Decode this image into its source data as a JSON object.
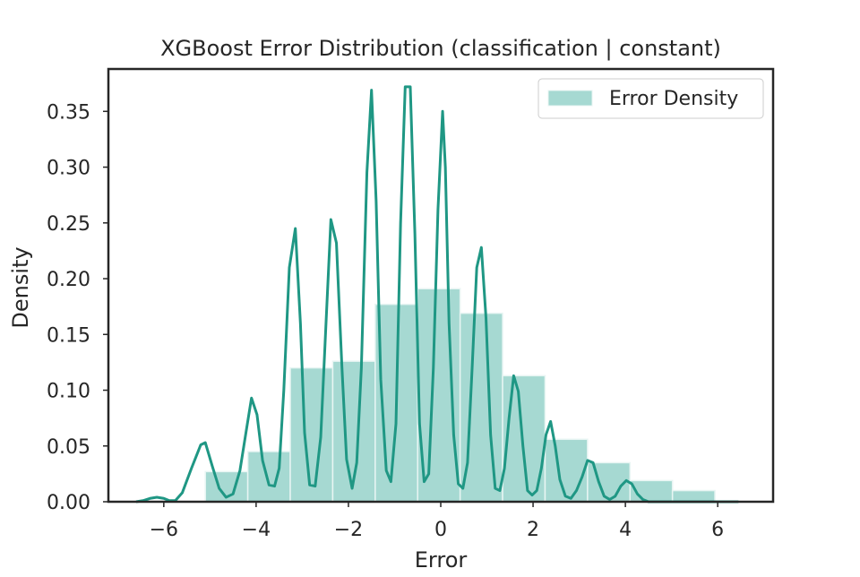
{
  "chart_data": {
    "type": "bar",
    "title": "XGBoost Error Distribution (classification | constant)",
    "xlabel": "Error",
    "ylabel": "Density",
    "xlim": [
      -7.2,
      7.2
    ],
    "ylim": [
      0,
      0.388
    ],
    "x_ticks": [
      -6,
      -4,
      -2,
      0,
      2,
      4,
      6
    ],
    "x_tick_labels": [
      "−6",
      "−4",
      "−2",
      "0",
      "2",
      "4",
      "6"
    ],
    "y_ticks": [
      0,
      0.05,
      0.1,
      0.15,
      0.2,
      0.25,
      0.3,
      0.35
    ],
    "y_tick_labels": [
      "0.00",
      "0.05",
      "0.10",
      "0.15",
      "0.20",
      "0.25",
      "0.30",
      "0.35"
    ],
    "grid": false,
    "legend": {
      "position": "top-right",
      "entries": [
        "Error Density"
      ]
    },
    "colors": {
      "bar_fill": "#a6d9d2",
      "bar_edge": "#e8f5f3",
      "line": "#1f9784",
      "axis": "#262626"
    },
    "histogram": {
      "name": "Error Density",
      "bins": [
        {
          "x0": -5.1,
          "x1": -4.18,
          "density": 0.027
        },
        {
          "x0": -4.18,
          "x1": -3.26,
          "density": 0.045
        },
        {
          "x0": -3.26,
          "x1": -2.34,
          "density": 0.12
        },
        {
          "x0": -2.34,
          "x1": -1.42,
          "density": 0.126
        },
        {
          "x0": -1.42,
          "x1": -0.5,
          "density": 0.177
        },
        {
          "x0": -0.5,
          "x1": 0.42,
          "density": 0.191
        },
        {
          "x0": 0.42,
          "x1": 1.34,
          "density": 0.169
        },
        {
          "x0": 1.34,
          "x1": 2.26,
          "density": 0.113
        },
        {
          "x0": 2.26,
          "x1": 3.18,
          "density": 0.056
        },
        {
          "x0": 3.18,
          "x1": 4.1,
          "density": 0.035
        },
        {
          "x0": 4.1,
          "x1": 5.02,
          "density": 0.019
        },
        {
          "x0": 5.02,
          "x1": 5.94,
          "density": 0.01
        }
      ]
    },
    "kde": {
      "x": [
        -6.6,
        -6.45,
        -6.3,
        -6.15,
        -6.0,
        -5.88,
        -5.75,
        -5.6,
        -5.4,
        -5.2,
        -5.1,
        -4.95,
        -4.8,
        -4.65,
        -4.5,
        -4.35,
        -4.22,
        -4.1,
        -3.98,
        -3.86,
        -3.72,
        -3.6,
        -3.5,
        -3.4,
        -3.28,
        -3.15,
        -3.04,
        -2.95,
        -2.84,
        -2.72,
        -2.6,
        -2.48,
        -2.38,
        -2.26,
        -2.14,
        -2.04,
        -1.92,
        -1.82,
        -1.72,
        -1.6,
        -1.5,
        -1.4,
        -1.3,
        -1.18,
        -1.08,
        -0.97,
        -0.87,
        -0.77,
        -0.66,
        -0.56,
        -0.46,
        -0.36,
        -0.26,
        -0.16,
        -0.06,
        0.04,
        0.1,
        0.18,
        0.28,
        0.38,
        0.48,
        0.58,
        0.68,
        0.78,
        0.88,
        0.98,
        1.08,
        1.18,
        1.28,
        1.38,
        1.48,
        1.58,
        1.68,
        1.78,
        1.88,
        1.98,
        2.08,
        2.18,
        2.28,
        2.38,
        2.48,
        2.58,
        2.7,
        2.82,
        2.94,
        3.06,
        3.18,
        3.3,
        3.42,
        3.54,
        3.66,
        3.78,
        3.9,
        4.02,
        4.14,
        4.26,
        4.38,
        4.5,
        4.62,
        4.74,
        4.86,
        5.0,
        5.12,
        5.24,
        5.36,
        5.48,
        5.6,
        5.72,
        5.84,
        5.96,
        6.08,
        6.2,
        6.32,
        6.45
      ],
      "y": [
        0.0,
        0.001,
        0.003,
        0.004,
        0.003,
        0.001,
        0.001,
        0.008,
        0.03,
        0.051,
        0.053,
        0.032,
        0.012,
        0.004,
        0.007,
        0.028,
        0.062,
        0.093,
        0.078,
        0.037,
        0.015,
        0.014,
        0.03,
        0.1,
        0.21,
        0.245,
        0.16,
        0.062,
        0.015,
        0.014,
        0.058,
        0.165,
        0.253,
        0.232,
        0.12,
        0.038,
        0.012,
        0.035,
        0.12,
        0.295,
        0.369,
        0.27,
        0.11,
        0.028,
        0.018,
        0.07,
        0.25,
        0.372,
        0.372,
        0.24,
        0.07,
        0.018,
        0.025,
        0.12,
        0.262,
        0.35,
        0.3,
        0.16,
        0.06,
        0.016,
        0.012,
        0.035,
        0.12,
        0.21,
        0.228,
        0.165,
        0.06,
        0.012,
        0.01,
        0.03,
        0.075,
        0.113,
        0.099,
        0.05,
        0.01,
        0.006,
        0.01,
        0.03,
        0.06,
        0.072,
        0.05,
        0.02,
        0.005,
        0.003,
        0.01,
        0.022,
        0.037,
        0.035,
        0.018,
        0.005,
        0.002,
        0.005,
        0.014,
        0.019,
        0.016,
        0.007,
        0.002,
        0.0,
        0.0,
        0.0,
        0.0,
        0.0,
        0.0,
        0.0,
        0.0,
        0.0,
        0.0,
        0.0,
        0.0,
        0.0,
        0.0,
        0.0,
        0.0,
        0.0
      ]
    }
  }
}
